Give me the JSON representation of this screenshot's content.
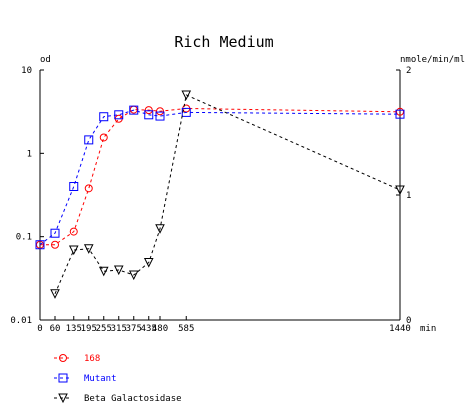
{
  "chart_data": {
    "type": "line",
    "title": "Rich Medium",
    "x": {
      "unit": "min",
      "range": [
        0,
        1440
      ],
      "ticks": [
        0,
        60,
        135,
        195,
        255,
        315,
        375,
        435,
        480,
        585,
        1440
      ],
      "tick_labels": [
        "0",
        "60",
        "135",
        "195",
        "255",
        "315",
        "375",
        "435",
        "480",
        "585",
        "1440"
      ]
    },
    "y_left": {
      "label": "od",
      "scale": "log",
      "range": [
        0.01,
        10
      ],
      "ticks": [
        0.01,
        0.1,
        1,
        10
      ],
      "tick_labels": [
        "0.01",
        "0.1",
        "1",
        "10"
      ]
    },
    "y_right": {
      "label": "nmole/min/ml",
      "scale": "linear",
      "range": [
        0,
        2
      ],
      "ticks": [
        0,
        1,
        2
      ],
      "tick_labels": [
        "0",
        "1",
        "2"
      ]
    },
    "legend_placement": "bottom-left",
    "series": [
      {
        "name": "168",
        "axis": "left",
        "marker": "circle",
        "color": "#ff0000",
        "x": [
          0,
          60,
          135,
          195,
          255,
          315,
          375,
          435,
          480,
          585,
          1440
        ],
        "y": [
          0.08,
          0.08,
          0.115,
          0.38,
          1.55,
          2.6,
          3.35,
          3.3,
          3.2,
          3.45,
          3.15
        ]
      },
      {
        "name": "Mutant",
        "axis": "left",
        "marker": "square",
        "color": "#0000ff",
        "x": [
          0,
          60,
          135,
          195,
          255,
          315,
          375,
          435,
          480,
          585,
          1440
        ],
        "y": [
          0.08,
          0.11,
          0.4,
          1.45,
          2.75,
          2.9,
          3.3,
          2.9,
          2.8,
          3.1,
          2.95
        ]
      },
      {
        "name": "Beta Galactosidase",
        "axis": "right",
        "marker": "triangle-down",
        "color": "#000000",
        "x": [
          60,
          135,
          195,
          255,
          315,
          375,
          435,
          480,
          585,
          1440
        ],
        "y": [
          0.21,
          0.56,
          0.57,
          0.39,
          0.4,
          0.36,
          0.46,
          0.73,
          1.8,
          1.04
        ]
      }
    ]
  }
}
